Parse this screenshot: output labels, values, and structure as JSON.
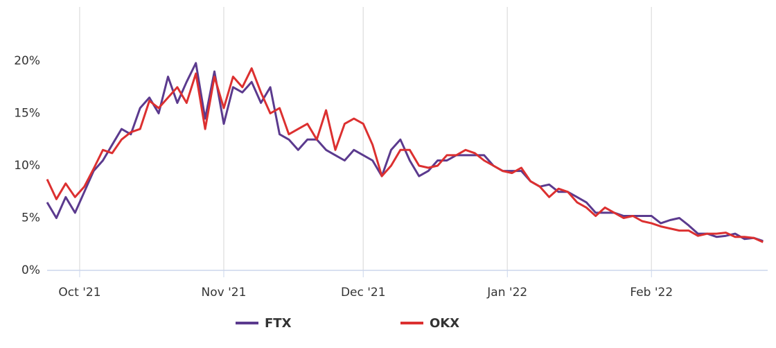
{
  "chart_data": {
    "type": "line",
    "x": [
      -7,
      -5,
      -3,
      -1,
      1,
      3,
      5,
      7,
      9,
      11,
      13,
      15,
      17,
      19,
      21,
      23,
      25,
      27,
      29,
      31,
      33,
      35,
      37,
      39,
      41,
      43,
      45,
      47,
      49,
      51,
      53,
      55,
      57,
      59,
      61,
      63,
      65,
      67,
      69,
      71,
      73,
      75,
      77,
      79,
      81,
      83,
      85,
      87,
      89,
      91,
      93,
      95,
      97,
      99,
      101,
      103,
      105,
      107,
      109,
      111,
      113,
      115,
      117,
      119,
      121,
      123,
      125,
      127,
      129,
      131,
      133,
      135,
      137,
      139,
      141,
      143,
      145,
      147
    ],
    "series": [
      {
        "name": "FTX",
        "color": "#5b3a8e",
        "values": [
          6.5,
          5.0,
          7.0,
          5.5,
          7.5,
          9.5,
          10.5,
          12,
          13.5,
          13,
          15.5,
          16.5,
          15,
          18.5,
          16,
          18,
          19.8,
          14.5,
          19,
          14,
          17.5,
          17,
          18,
          16,
          17.5,
          13,
          12.5,
          11.5,
          12.5,
          12.5,
          11.5,
          11,
          10.5,
          11.5,
          11,
          10.5,
          9,
          11.5,
          12.5,
          10.5,
          9,
          9.5,
          10.5,
          10.5,
          11,
          11,
          11,
          11,
          10,
          9.5,
          9.5,
          9.5,
          8.5,
          8,
          8.2,
          7.5,
          7.5,
          7,
          6.5,
          5.5,
          5.5,
          5.5,
          5.2,
          5.2,
          5.2,
          5.2,
          4.5,
          4.8,
          5,
          4.3,
          3.5,
          3.5,
          3.2,
          3.3,
          3.5,
          3.0,
          3.1,
          2.8
        ]
      },
      {
        "name": "OKX",
        "color": "#dc3030",
        "values": [
          8.7,
          6.8,
          8.3,
          7.0,
          8.0,
          9.7,
          11.5,
          11.2,
          12.5,
          13.2,
          13.5,
          16.2,
          15.5,
          16.5,
          17.5,
          16,
          18.8,
          13.5,
          18.5,
          15.5,
          18.5,
          17.5,
          19.3,
          17,
          15,
          15.5,
          13,
          13.5,
          14,
          12.5,
          15.3,
          11.5,
          14,
          14.5,
          14,
          12,
          9,
          10,
          11.5,
          11.5,
          10,
          9.8,
          10,
          11,
          11,
          11.5,
          11.2,
          10.5,
          10,
          9.5,
          9.3,
          9.8,
          8.5,
          8,
          7,
          7.8,
          7.5,
          6.5,
          6,
          5.2,
          6,
          5.5,
          5,
          5.2,
          4.7,
          4.5,
          4.2,
          4,
          3.8,
          3.8,
          3.3,
          3.5,
          3.5,
          3.6,
          3.2,
          3.2,
          3.1,
          2.7
        ]
      }
    ],
    "xlim": [
      -7,
      148
    ],
    "xticks": [
      {
        "value": 0,
        "label": "Oct '21"
      },
      {
        "value": 31,
        "label": "Nov '21"
      },
      {
        "value": 61,
        "label": "Dec '21"
      },
      {
        "value": 92,
        "label": "Jan '22"
      },
      {
        "value": 123,
        "label": "Feb '22"
      }
    ],
    "ylim": [
      0,
      25
    ],
    "yticks": [
      {
        "value": 0,
        "label": "0%"
      },
      {
        "value": 5,
        "label": "5%"
      },
      {
        "value": 10,
        "label": "10%"
      },
      {
        "value": 15,
        "label": "15%"
      },
      {
        "value": 20,
        "label": "20%"
      }
    ],
    "grid": true,
    "legend": "bottom"
  }
}
